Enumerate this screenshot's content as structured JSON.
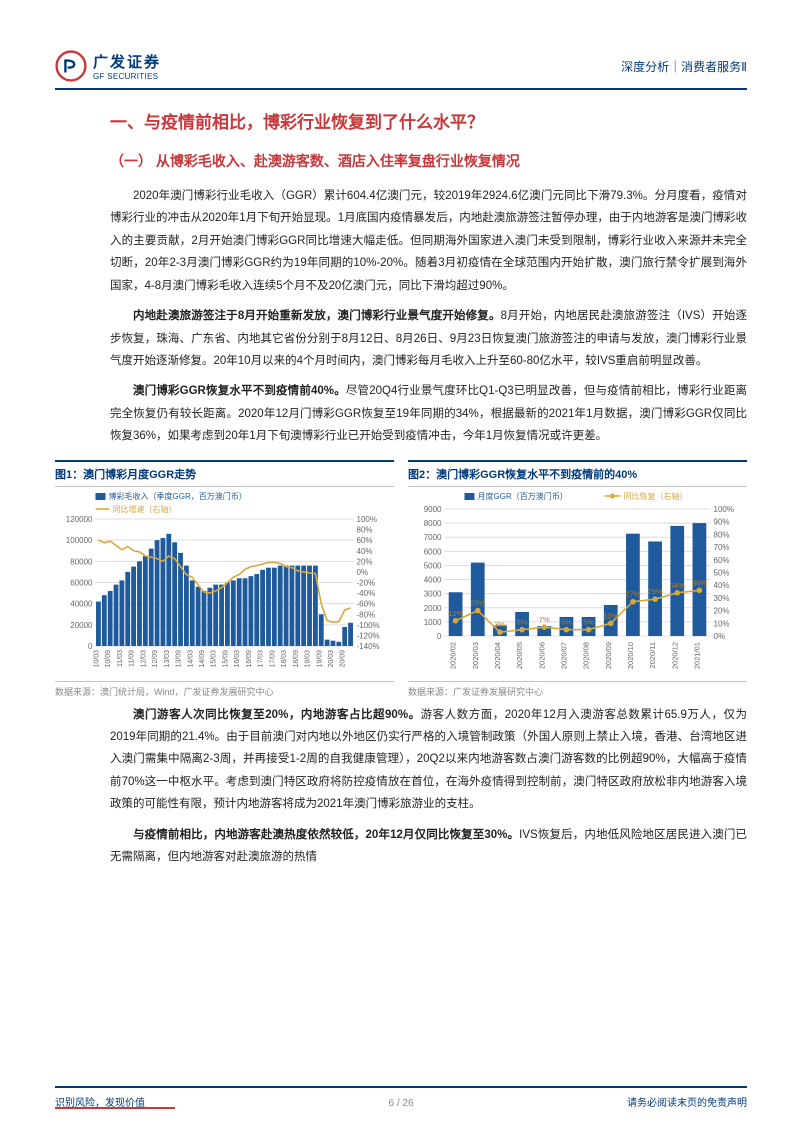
{
  "colors": {
    "brand_blue": "#003a7a",
    "brand_red": "#c8373a",
    "text": "#222",
    "grid": "#dcdcdc",
    "muted": "#888"
  },
  "header": {
    "logo_cn": "广发证券",
    "logo_en": "GF SECURITIES",
    "right": "深度分析｜消费者服务Ⅱ"
  },
  "h1": "一、与疫情前相比，博彩行业恢复到了什么水平？",
  "h2": "（一） 从博彩毛收入、赴澳游客数、酒店入住率复盘行业恢复情况",
  "p1": "2020年澳门博彩行业毛收入（GGR）累计604.4亿澳门元，较2019年2924.6亿澳门元同比下滑79.3%。分月度看，疫情对博彩行业的冲击从2020年1月下旬开始显现。1月底国内疫情暴发后，内地赴澳旅游签注暂停办理，由于内地游客是澳门博彩收入的主要贡献，2月开始澳门博彩GGR同比增速大幅走低。但同期海外国家进入澳门未受到限制，博彩行业收入来源并未完全切断，20年2-3月澳门博彩GGR约为19年同期的10%-20%。随着3月初疫情在全球范围内开始扩散，澳门旅行禁令扩展到海外国家，4-8月澳门博彩毛收入连续5个月不及20亿澳门元，同比下滑均超过90%。",
  "p2_bold": "内地赴澳旅游签注于8月开始重新发放，澳门博彩行业景气度开始修复。",
  "p2": "8月开始，内地居民赴澳旅游签注（IVS）开始逐步恢复，珠海、广东省、内地其它省份分别于8月12日、8月26日、9月23日恢复澳门旅游签注的申请与发放，澳门博彩行业景气度开始逐渐修复。20年10月以来的4个月时间内，澳门博彩每月毛收入上升至60-80亿水平，较IVS重启前明显改善。",
  "p3_bold": "澳门博彩GGR恢复水平不到疫情前40%。",
  "p3": "尽管20Q4行业景气度环比Q1-Q3已明显改善，但与疫情前相比，博彩行业距离完全恢复仍有较长距离。2020年12月门博彩GGR恢复至19年同期的34%，根据最新的2021年1月数据，澳门博彩GGR仅同比恢复36%，如果考虑到20年1月下旬澳博彩行业已开始受到疫情冲击，今年1月恢复情况或许更差。",
  "chart1": {
    "title": "图1：澳门博彩月度GGR走势",
    "type": "bar+line",
    "legend_bar": "博彩毛收入（季度GGR，百万澳门币）",
    "legend_line": "同比增速（右轴）",
    "bar_color": "#1e5a9c",
    "line_color": "#d9a83a",
    "background_color": "#ffffff",
    "grid_color": "#dcdcdc",
    "xlabels": [
      "10/03",
      "10/09",
      "11/03",
      "11/09",
      "12/03",
      "12/09",
      "13/03",
      "13/09",
      "14/03",
      "14/09",
      "15/03",
      "15/09",
      "16/03",
      "16/09",
      "17/03",
      "17/09",
      "18/03",
      "18/09",
      "19/03",
      "19/09",
      "20/03",
      "20/09"
    ],
    "xlabel_fontsize": 7,
    "ylabel_fontsize": 8,
    "y1_lim": [
      0,
      120000
    ],
    "y1_step": 20000,
    "y2_lim": [
      -140,
      100
    ],
    "y2_step": 20,
    "bars": [
      42000,
      48000,
      52000,
      58000,
      62000,
      70000,
      75000,
      80000,
      85000,
      92000,
      100000,
      102000,
      106000,
      98000,
      88000,
      76000,
      62000,
      56000,
      52000,
      55000,
      58000,
      58000,
      60000,
      62000,
      64000,
      64000,
      66000,
      68000,
      72000,
      74000,
      74000,
      76000,
      76000,
      76000,
      76000,
      76000,
      76000,
      76000,
      30000,
      6000,
      5000,
      4000,
      18000,
      22000
    ],
    "line": [
      60,
      55,
      58,
      50,
      42,
      48,
      40,
      38,
      30,
      28,
      25,
      20,
      30,
      25,
      10,
      -5,
      -10,
      -25,
      -38,
      -40,
      -36,
      -30,
      -20,
      -10,
      -5,
      5,
      10,
      12,
      15,
      18,
      18,
      16,
      10,
      8,
      2,
      0,
      -2,
      -3,
      -60,
      -92,
      -95,
      -94,
      -72,
      -68
    ]
  },
  "chart2": {
    "title": "图2：澳门博彩GGR恢复水平不到疫情前的40%",
    "type": "bar+line",
    "legend_bar": "月度GGR（百万澳门币）",
    "legend_line": "同比恢复（右轴）",
    "bar_color": "#1e5a9c",
    "line_color": "#d9a83a",
    "marker_color": "#d9a83a",
    "marker_text_color": "#b87e1a",
    "background_color": "#ffffff",
    "grid_color": "#dcdcdc",
    "xlabels": [
      "2020/02",
      "2020/03",
      "2020/04",
      "2020/05",
      "2020/06",
      "2020/07",
      "2020/08",
      "2020/09",
      "2020/10",
      "2020/11",
      "2020/12",
      "2021/01"
    ],
    "xlabel_fontsize": 7.5,
    "ylabel_fontsize": 8,
    "y1_lim": [
      0,
      9000
    ],
    "y1_step": 1000,
    "y2_lim": [
      0,
      100
    ],
    "y2_step": 10,
    "bars": [
      3100,
      5200,
      750,
      1700,
      700,
      1350,
      1350,
      2200,
      7250,
      6700,
      7800,
      8000
    ],
    "line": [
      12,
      20,
      3,
      5,
      7,
      5,
      5,
      10,
      27,
      29,
      34,
      36
    ],
    "labels": [
      "12%",
      "20%",
      "3%",
      "5%",
      "7%",
      "5%",
      "5%",
      "10%",
      "27%",
      "29%",
      "34%",
      "36%"
    ]
  },
  "source1": "数据来源：澳门统计局，Wind，广发证券发展研究中心",
  "source2": "数据来源：广发证券发展研究中心",
  "p4_bold": "澳门游客人次同比恢复至20%，内地游客占比超90%。",
  "p4": "游客人数方面，2020年12月入澳游客总数累计65.9万人，仅为2019年同期的21.4%。由于目前澳门对内地以外地区仍实行严格的入境管制政策（外国人原则上禁止入境，香港、台湾地区进入澳门需集中隔离2-3周，并再接受1-2周的自我健康管理），20Q2以来内地游客数占澳门游客数的比例超90%，大幅高于疫情前70%这一中枢水平。考虑到澳门特区政府将防控疫情放在首位，在海外疫情得到控制前，澳门特区政府放松非内地游客入境政策的可能性有限，预计内地游客将成为2021年澳门博彩旅游业的支柱。",
  "p5_bold": "与疫情前相比，内地游客赴澳热度依然较低，20年12月仅同比恢复至30%。",
  "p5": "IVS恢复后，内地低风险地区居民进入澳门已无需隔离，但内地游客对赴澳旅游的热情",
  "footer": {
    "left": "识别风险，发现价值",
    "right": "请务必阅读末页的免责声明",
    "page": "6 / 26"
  }
}
